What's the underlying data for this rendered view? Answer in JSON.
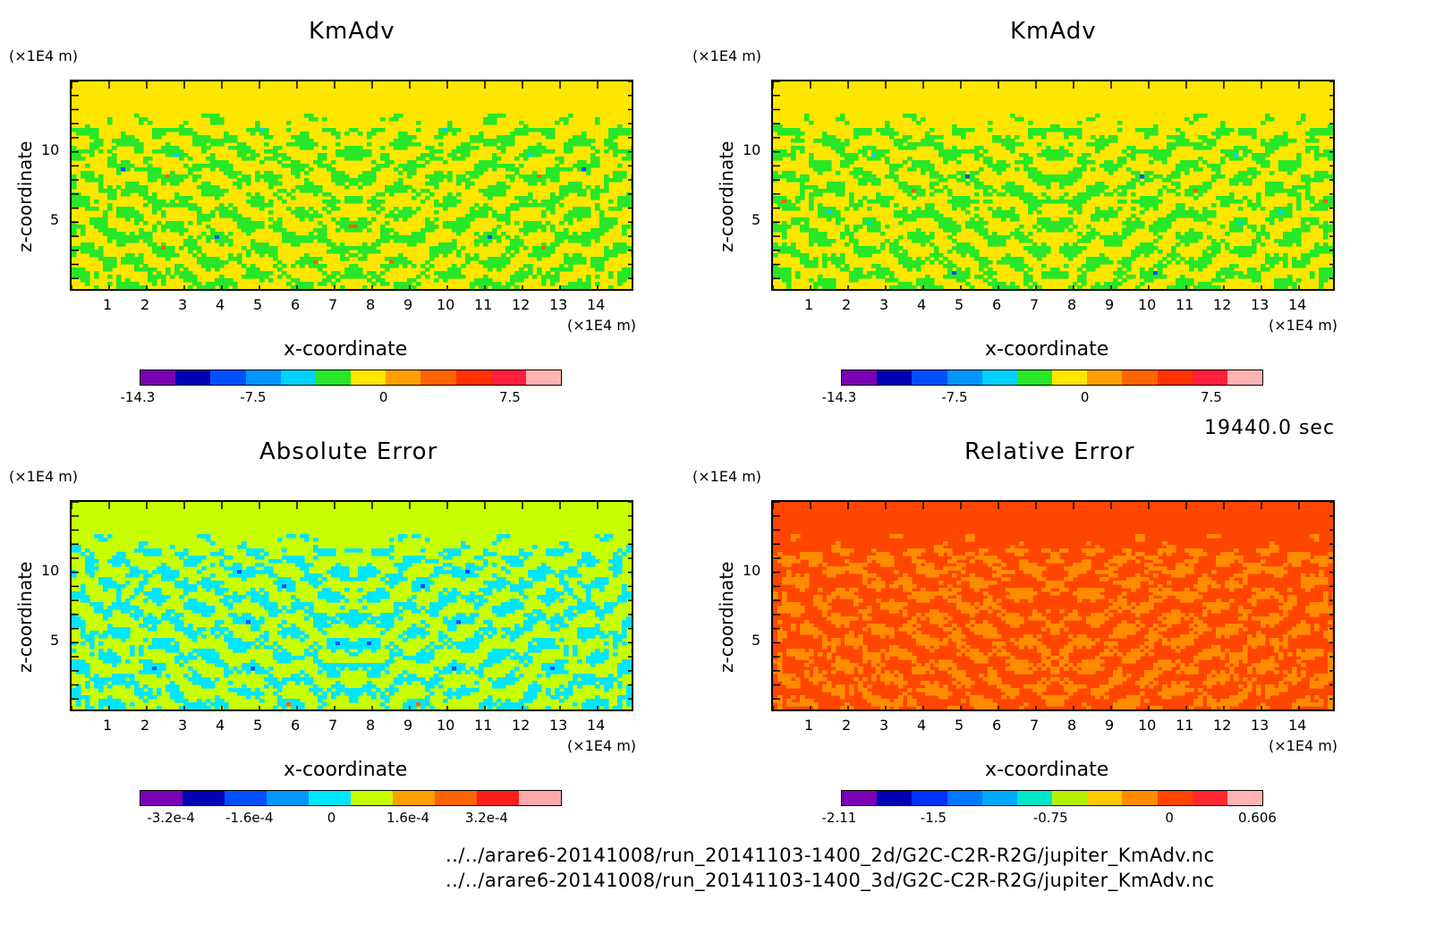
{
  "chart_data": [
    {
      "type": "heatmap",
      "title": "KmAdv",
      "xlabel": "x-coordinate",
      "ylabel": "z-coordinate",
      "xunit": "(×1E4 m)",
      "yunit": "(×1E4 m)",
      "x_ticks": [
        "1",
        "2",
        "3",
        "4",
        "5",
        "6",
        "7",
        "8",
        "9",
        "10",
        "11",
        "12",
        "13",
        "14"
      ],
      "y_ticks": [
        "5",
        "10"
      ],
      "xlim": [
        0,
        15
      ],
      "ylim": [
        0,
        15
      ],
      "colorbar_ticks": [
        "-14.3",
        "-7.5",
        "0",
        "7.5"
      ],
      "colorbar_colors": [
        "#7a00b4",
        "#0000b4",
        "#0050ff",
        "#0096ff",
        "#00d2ff",
        "#28e628",
        "#ffe600",
        "#ffa000",
        "#ff6400",
        "#ff3200",
        "#ff1e3c",
        "#ffb4b4"
      ]
    },
    {
      "type": "heatmap",
      "title": "KmAdv",
      "xlabel": "x-coordinate",
      "ylabel": "z-coordinate",
      "xunit": "(×1E4 m)",
      "yunit": "(×1E4 m)",
      "x_ticks": [
        "1",
        "2",
        "3",
        "4",
        "5",
        "6",
        "7",
        "8",
        "9",
        "10",
        "11",
        "12",
        "13",
        "14"
      ],
      "y_ticks": [
        "5",
        "10"
      ],
      "xlim": [
        0,
        15
      ],
      "ylim": [
        0,
        15
      ],
      "colorbar_ticks": [
        "-14.3",
        "-7.5",
        "0",
        "7.5"
      ],
      "colorbar_colors": [
        "#7a00b4",
        "#0000b4",
        "#0050ff",
        "#0096ff",
        "#00d2ff",
        "#28e628",
        "#ffe600",
        "#ffa000",
        "#ff6400",
        "#ff3200",
        "#ff1e3c",
        "#ffb4b4"
      ]
    },
    {
      "type": "heatmap",
      "title": "Absolute Error",
      "xlabel": "x-coordinate",
      "ylabel": "z-coordinate",
      "xunit": "(×1E4 m)",
      "yunit": "(×1E4 m)",
      "x_ticks": [
        "1",
        "2",
        "3",
        "4",
        "5",
        "6",
        "7",
        "8",
        "9",
        "10",
        "11",
        "12",
        "13",
        "14"
      ],
      "y_ticks": [
        "5",
        "10"
      ],
      "xlim": [
        0,
        15
      ],
      "ylim": [
        0,
        15
      ],
      "colorbar_ticks": [
        "-3.2e-4",
        "-1.6e-4",
        "0",
        "1.6e-4",
        "3.2e-4"
      ],
      "colorbar_colors": [
        "#7a00b4",
        "#0000b4",
        "#0050ff",
        "#0096ff",
        "#00e6ff",
        "#c8ff00",
        "#ffa000",
        "#ff6400",
        "#ff1e1e",
        "#ffaaaa"
      ]
    },
    {
      "type": "heatmap",
      "title": "Relative Error",
      "xlabel": "x-coordinate",
      "ylabel": "z-coordinate",
      "xunit": "(×1E4 m)",
      "yunit": "(×1E4 m)",
      "x_ticks": [
        "1",
        "2",
        "3",
        "4",
        "5",
        "6",
        "7",
        "8",
        "9",
        "10",
        "11",
        "12",
        "13",
        "14"
      ],
      "y_ticks": [
        "5",
        "10"
      ],
      "xlim": [
        0,
        15
      ],
      "ylim": [
        0,
        15
      ],
      "colorbar_ticks": [
        "-2.11",
        "-1.5",
        "-0.75",
        "0",
        "0.606"
      ],
      "colorbar_colors": [
        "#7a00b4",
        "#0000b4",
        "#0032ff",
        "#0078ff",
        "#00aaff",
        "#00e6c8",
        "#b4f000",
        "#ffc800",
        "#ff8c00",
        "#ff4600",
        "#ff2832",
        "#ffb4b4"
      ]
    }
  ],
  "timestamp": "19440.0 sec",
  "file_paths": [
    "../../arare6-20141008/run_20141103-1400_2d/G2C-C2R-R2G/jupiter_KmAdv.nc",
    "../../arare6-20141008/run_20141103-1400_3d/G2C-C2R-R2G/jupiter_KmAdv.nc"
  ]
}
